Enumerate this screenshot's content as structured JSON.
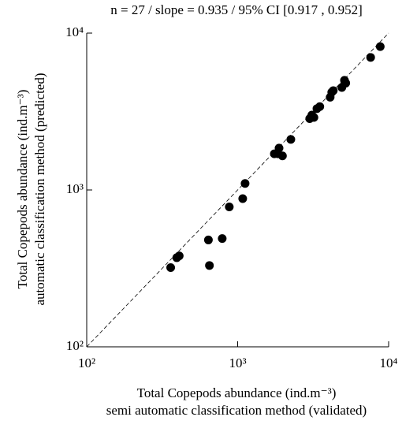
{
  "chart_data": {
    "type": "scatter",
    "title": "n = 27 / slope = 0.935 / 95% CI [0.917 , 0.952]",
    "x_label": [
      "Total Copepods abundance (ind.m⁻³)",
      "semi automatic classification method (validated)"
    ],
    "y_label": [
      "Total Copepods abundance (ind.m⁻³)",
      "automatic classification method (predicted)"
    ],
    "x": [
      360,
      395,
      410,
      640,
      650,
      790,
      880,
      1080,
      1120,
      1750,
      1880,
      1850,
      1980,
      2250,
      3000,
      3100,
      3200,
      3350,
      3500,
      4100,
      4200,
      4300,
      4900,
      5100,
      5200,
      7600,
      8800
    ],
    "values": [
      320,
      370,
      380,
      480,
      330,
      490,
      780,
      880,
      1100,
      1700,
      1850,
      1700,
      1650,
      2100,
      2850,
      3000,
      2900,
      3300,
      3400,
      3900,
      4200,
      4300,
      4500,
      5000,
      4800,
      7000,
      8200
    ],
    "color": "#000000",
    "log_scale": true,
    "xlim": [
      100,
      10000
    ],
    "ylim": [
      100,
      10000
    ],
    "xticks": [
      {
        "value": 100,
        "label": "10²"
      },
      {
        "value": 1000,
        "label": "10³"
      },
      {
        "value": 10000,
        "label": "10⁴"
      }
    ],
    "yticks": [
      {
        "value": 100,
        "label": "10²"
      },
      {
        "value": 1000,
        "label": "10³"
      },
      {
        "value": 10000,
        "label": "10⁴"
      }
    ]
  }
}
